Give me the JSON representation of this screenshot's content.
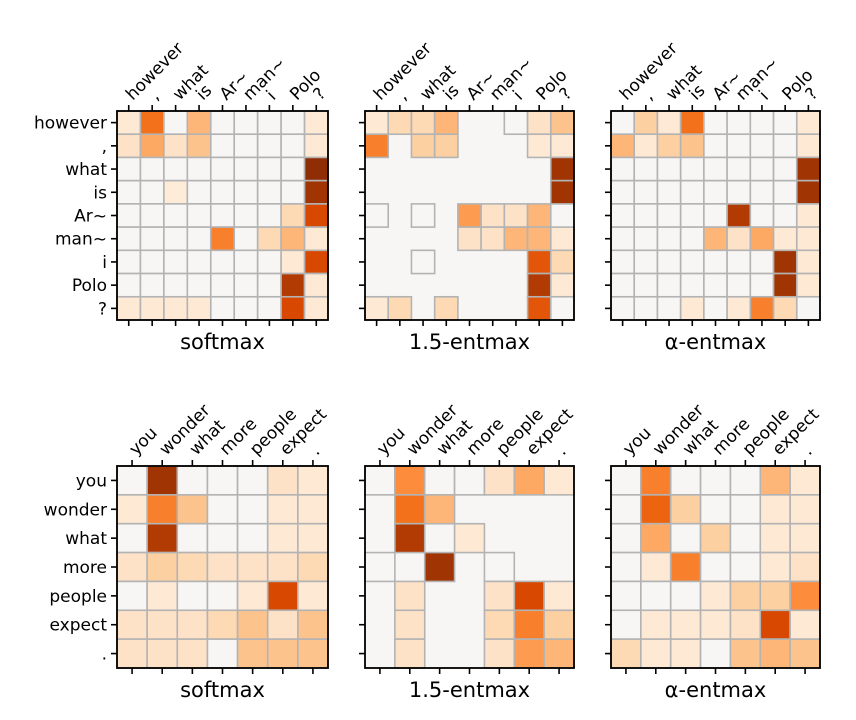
{
  "chart_data": [
    {
      "type": "heatmap",
      "title": "softmax",
      "tokens": [
        "however",
        ",",
        "what",
        "is",
        "Ar~",
        "man~",
        "i",
        "Polo",
        "?"
      ],
      "values": [
        [
          0.1,
          0.6,
          0.05,
          0.35,
          0.05,
          0.05,
          0.05,
          0.05,
          0.1
        ],
        [
          0.15,
          0.4,
          0.15,
          0.3,
          0.05,
          0.05,
          0.05,
          0.05,
          0.1
        ],
        [
          0.03,
          0.03,
          0.03,
          0.03,
          0.03,
          0.03,
          0.03,
          0.05,
          0.95
        ],
        [
          0.03,
          0.03,
          0.08,
          0.03,
          0.03,
          0.03,
          0.03,
          0.05,
          0.9
        ],
        [
          0.05,
          0.05,
          0.05,
          0.05,
          0.05,
          0.05,
          0.05,
          0.2,
          0.75
        ],
        [
          0.05,
          0.05,
          0.05,
          0.05,
          0.55,
          0.05,
          0.2,
          0.35,
          0.1
        ],
        [
          0.05,
          0.05,
          0.05,
          0.05,
          0.05,
          0.05,
          0.05,
          0.1,
          0.75
        ],
        [
          0.05,
          0.05,
          0.05,
          0.05,
          0.05,
          0.05,
          0.05,
          0.85,
          0.1
        ],
        [
          0.1,
          0.1,
          0.1,
          0.1,
          0.05,
          0.05,
          0.05,
          0.75,
          0.1
        ]
      ]
    },
    {
      "type": "heatmap",
      "title": "1.5-entmax",
      "tokens": [
        "however",
        ",",
        "what",
        "is",
        "Ar~",
        "man~",
        "i",
        "Polo",
        "?"
      ],
      "values": [
        [
          0.1,
          0.2,
          0.2,
          0.35,
          null,
          null,
          0.05,
          0.15,
          0.3
        ],
        [
          0.55,
          null,
          0.25,
          0.25,
          null,
          null,
          null,
          0.1,
          0.1
        ],
        [
          null,
          null,
          null,
          null,
          null,
          null,
          null,
          null,
          0.9
        ],
        [
          null,
          null,
          null,
          null,
          null,
          null,
          null,
          null,
          0.9
        ],
        [
          0.05,
          null,
          0.05,
          null,
          0.45,
          0.15,
          0.15,
          0.35,
          null
        ],
        [
          null,
          null,
          null,
          null,
          0.15,
          0.15,
          0.35,
          0.35,
          0.1
        ],
        [
          null,
          null,
          0.05,
          null,
          null,
          null,
          null,
          0.7,
          0.2
        ],
        [
          null,
          null,
          null,
          null,
          null,
          null,
          null,
          0.85,
          0.1
        ],
        [
          0.1,
          0.2,
          null,
          0.2,
          null,
          null,
          null,
          0.7,
          0.05
        ]
      ]
    },
    {
      "type": "heatmap",
      "title": "α-entmax",
      "tokens": [
        "however",
        ",",
        "what",
        "is",
        "Ar~",
        "man~",
        "i",
        "Polo",
        "?"
      ],
      "values": [
        [
          0.05,
          0.25,
          0.1,
          0.6,
          0.05,
          0.05,
          0.05,
          0.05,
          0.1
        ],
        [
          0.35,
          0.1,
          0.25,
          0.3,
          0.05,
          0.05,
          0.05,
          0.05,
          0.1
        ],
        [
          0.05,
          0.05,
          0.05,
          0.05,
          0.05,
          0.05,
          0.05,
          0.05,
          0.9
        ],
        [
          0.05,
          0.05,
          0.05,
          0.05,
          0.05,
          0.05,
          0.05,
          0.05,
          0.9
        ],
        [
          0.05,
          0.05,
          0.05,
          0.05,
          0.05,
          0.85,
          0.05,
          0.05,
          0.1
        ],
        [
          0.05,
          0.05,
          0.05,
          0.05,
          0.35,
          0.15,
          0.4,
          0.1,
          0.1
        ],
        [
          0.05,
          0.05,
          0.05,
          0.05,
          0.05,
          0.05,
          0.05,
          0.9,
          0.1
        ],
        [
          0.05,
          0.05,
          0.05,
          0.05,
          0.05,
          0.05,
          0.05,
          0.9,
          0.1
        ],
        [
          0.05,
          0.05,
          0.05,
          0.1,
          0.05,
          0.1,
          0.55,
          0.2,
          0.05
        ]
      ]
    },
    {
      "type": "heatmap",
      "title": "softmax",
      "tokens": [
        "you",
        "wonder",
        "what",
        "more",
        "people",
        "expect",
        "."
      ],
      "values": [
        [
          0.05,
          0.9,
          0.05,
          0.05,
          0.05,
          0.15,
          0.1
        ],
        [
          0.1,
          0.55,
          0.3,
          0.05,
          0.05,
          0.1,
          0.1
        ],
        [
          0.05,
          0.85,
          0.05,
          0.05,
          0.05,
          0.1,
          0.1
        ],
        [
          0.15,
          0.25,
          0.2,
          0.15,
          0.15,
          0.15,
          0.2
        ],
        [
          0.05,
          0.1,
          0.05,
          0.05,
          0.1,
          0.75,
          0.1
        ],
        [
          0.15,
          0.15,
          0.15,
          0.2,
          0.3,
          0.15,
          0.3
        ],
        [
          0.15,
          0.15,
          0.15,
          0.05,
          0.3,
          0.3,
          0.3
        ]
      ]
    },
    {
      "type": "heatmap",
      "title": "1.5-entmax",
      "tokens": [
        "you",
        "wonder",
        "what",
        "more",
        "people",
        "expect",
        "."
      ],
      "values": [
        [
          0.05,
          0.5,
          0.05,
          0.05,
          0.15,
          0.4,
          0.1
        ],
        [
          null,
          0.6,
          0.35,
          null,
          null,
          null,
          null
        ],
        [
          null,
          0.85,
          null,
          0.1,
          null,
          null,
          null
        ],
        [
          0.05,
          null,
          0.9,
          null,
          0.05,
          null,
          null
        ],
        [
          null,
          0.15,
          null,
          null,
          0.15,
          0.75,
          0.1
        ],
        [
          null,
          0.15,
          null,
          null,
          0.2,
          0.55,
          0.25
        ],
        [
          null,
          0.15,
          null,
          null,
          0.15,
          0.45,
          0.35
        ]
      ]
    },
    {
      "type": "heatmap",
      "title": "α-entmax",
      "tokens": [
        "you",
        "wonder",
        "what",
        "more",
        "people",
        "expect",
        "."
      ],
      "values": [
        [
          0.05,
          0.55,
          0.05,
          0.05,
          0.05,
          0.35,
          0.1
        ],
        [
          0.05,
          0.65,
          0.25,
          0.05,
          0.05,
          0.1,
          0.1
        ],
        [
          0.05,
          0.4,
          0.05,
          0.25,
          0.05,
          0.1,
          0.1
        ],
        [
          0.05,
          0.1,
          0.55,
          0.05,
          0.05,
          0.1,
          0.15
        ],
        [
          0.05,
          0.05,
          0.05,
          0.1,
          0.25,
          0.25,
          0.5
        ],
        [
          0.05,
          0.1,
          0.1,
          0.1,
          0.15,
          0.75,
          0.1
        ],
        [
          0.2,
          0.1,
          0.1,
          0.05,
          0.3,
          0.35,
          0.3
        ]
      ]
    }
  ]
}
